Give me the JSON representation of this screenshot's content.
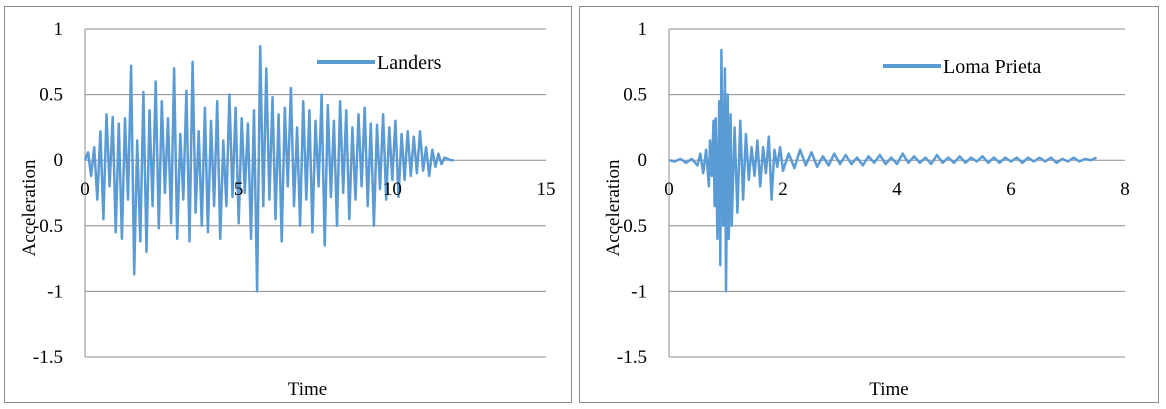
{
  "chart_data": [
    {
      "type": "line",
      "title": "",
      "xlabel": "Time",
      "ylabel": "Acceleration",
      "xlim": [
        0,
        15
      ],
      "ylim": [
        -1.5,
        1
      ],
      "xticks": [
        0,
        5,
        10,
        15
      ],
      "xtick_labels": [
        "0",
        "5",
        "10",
        "15"
      ],
      "yticks": [
        -1.5,
        -1,
        -0.5,
        0,
        0.5,
        1
      ],
      "ytick_labels": [
        "-1.5",
        "-1",
        "-0.5",
        "0",
        "0.5",
        "1"
      ],
      "grid": "horizontal",
      "legend": "top-right",
      "series": [
        {
          "name": "Landers",
          "color": "#5b9bd5",
          "x": [
            0,
            0.1,
            0.2,
            0.3,
            0.4,
            0.5,
            0.6,
            0.7,
            0.8,
            0.9,
            1.0,
            1.1,
            1.2,
            1.3,
            1.4,
            1.5,
            1.6,
            1.7,
            1.8,
            1.9,
            2.0,
            2.1,
            2.2,
            2.3,
            2.4,
            2.5,
            2.6,
            2.7,
            2.8,
            2.9,
            3.0,
            3.1,
            3.2,
            3.3,
            3.4,
            3.5,
            3.6,
            3.7,
            3.8,
            3.9,
            4.0,
            4.1,
            4.2,
            4.3,
            4.4,
            4.5,
            4.6,
            4.7,
            4.8,
            4.9,
            5.0,
            5.1,
            5.2,
            5.3,
            5.4,
            5.5,
            5.6,
            5.7,
            5.8,
            5.9,
            6.0,
            6.1,
            6.2,
            6.3,
            6.4,
            6.5,
            6.6,
            6.7,
            6.8,
            6.9,
            7.0,
            7.1,
            7.2,
            7.3,
            7.4,
            7.5,
            7.6,
            7.7,
            7.8,
            7.9,
            8.0,
            8.1,
            8.2,
            8.3,
            8.4,
            8.5,
            8.6,
            8.7,
            8.8,
            8.9,
            9.0,
            9.1,
            9.2,
            9.3,
            9.4,
            9.5,
            9.6,
            9.7,
            9.8,
            9.9,
            10.0,
            10.1,
            10.2,
            10.3,
            10.4,
            10.5,
            10.6,
            10.7,
            10.8,
            10.9,
            11.0,
            11.1,
            11.2,
            11.3,
            11.4,
            11.5,
            11.6,
            11.7,
            11.8,
            11.9,
            12.0
          ],
          "y": [
            0,
            0.06,
            -0.12,
            0.1,
            -0.3,
            0.22,
            -0.45,
            0.35,
            -0.2,
            0.33,
            -0.55,
            0.28,
            -0.6,
            0.32,
            -0.3,
            0.72,
            -0.87,
            0.15,
            -0.62,
            0.52,
            -0.7,
            0.38,
            -0.35,
            0.6,
            -0.52,
            0.45,
            -0.25,
            0.32,
            -0.48,
            0.7,
            -0.6,
            0.2,
            -0.3,
            0.53,
            -0.62,
            0.75,
            -0.4,
            0.22,
            -0.5,
            0.4,
            -0.55,
            0.3,
            -0.35,
            0.45,
            -0.6,
            0.15,
            -0.35,
            0.5,
            -0.28,
            0.4,
            -0.48,
            0.32,
            -0.25,
            0.28,
            -0.6,
            0.38,
            -1.0,
            0.87,
            -0.35,
            0.7,
            -0.3,
            0.48,
            -0.45,
            0.35,
            -0.62,
            0.4,
            -0.2,
            0.55,
            -0.35,
            0.25,
            -0.5,
            0.45,
            -0.3,
            0.38,
            -0.55,
            0.3,
            -0.2,
            0.5,
            -0.65,
            0.42,
            -0.28,
            0.3,
            -0.5,
            0.45,
            -0.25,
            0.38,
            -0.45,
            0.25,
            -0.3,
            0.35,
            -0.2,
            0.4,
            -0.35,
            0.28,
            -0.5,
            0.27,
            -0.22,
            0.35,
            -0.3,
            0.25,
            -0.15,
            0.3,
            -0.28,
            0.2,
            -0.15,
            0.22,
            -0.12,
            0.18,
            -0.1,
            0.22,
            -0.08,
            0.1,
            -0.12,
            0.08,
            -0.05,
            0.05,
            -0.03,
            0.02,
            0.01,
            0.0,
            0.0
          ]
        }
      ]
    },
    {
      "type": "line",
      "title": "",
      "xlabel": "Time",
      "ylabel": "Acceleration",
      "xlim": [
        0,
        8
      ],
      "ylim": [
        -1.5,
        1
      ],
      "xticks": [
        0,
        2,
        4,
        6,
        8
      ],
      "xtick_labels": [
        "0",
        "2",
        "4",
        "6",
        "8"
      ],
      "yticks": [
        -1.5,
        -1,
        -0.5,
        0,
        0.5,
        1
      ],
      "ytick_labels": [
        "-1.5",
        "-1",
        "-0.5",
        "0",
        "0.5",
        "1"
      ],
      "grid": "horizontal",
      "legend": "top-right",
      "series": [
        {
          "name": "Loma Prieta",
          "color": "#5b9bd5",
          "x": [
            0,
            0.1,
            0.2,
            0.3,
            0.4,
            0.5,
            0.55,
            0.6,
            0.65,
            0.7,
            0.72,
            0.75,
            0.78,
            0.8,
            0.82,
            0.85,
            0.88,
            0.9,
            0.92,
            0.95,
            0.98,
            1.0,
            1.03,
            1.05,
            1.08,
            1.1,
            1.15,
            1.2,
            1.25,
            1.3,
            1.35,
            1.4,
            1.45,
            1.5,
            1.55,
            1.6,
            1.65,
            1.7,
            1.75,
            1.8,
            1.85,
            1.9,
            1.95,
            2.0,
            2.1,
            2.2,
            2.3,
            2.4,
            2.5,
            2.6,
            2.7,
            2.8,
            2.9,
            3.0,
            3.1,
            3.2,
            3.3,
            3.4,
            3.5,
            3.6,
            3.7,
            3.8,
            3.9,
            4.0,
            4.1,
            4.2,
            4.3,
            4.4,
            4.5,
            4.6,
            4.7,
            4.8,
            4.9,
            5.0,
            5.1,
            5.2,
            5.3,
            5.4,
            5.5,
            5.6,
            5.7,
            5.8,
            5.9,
            6.0,
            6.1,
            6.2,
            6.3,
            6.4,
            6.5,
            6.6,
            6.7,
            6.8,
            6.9,
            7.0,
            7.1,
            7.2,
            7.3,
            7.4,
            7.5
          ],
          "y": [
            0,
            -0.01,
            0.01,
            -0.02,
            0.01,
            -0.04,
            0.05,
            -0.1,
            0.08,
            -0.2,
            0.15,
            -0.12,
            0.3,
            -0.35,
            0.32,
            -0.6,
            0.45,
            -0.8,
            0.84,
            -0.5,
            0.7,
            -1.0,
            0.5,
            -0.6,
            0.35,
            -0.5,
            0.25,
            -0.4,
            0.3,
            -0.3,
            0.2,
            -0.15,
            0.1,
            -0.12,
            0.15,
            -0.2,
            0.1,
            -0.1,
            0.18,
            -0.3,
            0.08,
            -0.05,
            0.1,
            -0.08,
            0.05,
            -0.06,
            0.08,
            -0.04,
            0.06,
            -0.05,
            0.03,
            -0.04,
            0.05,
            -0.03,
            0.04,
            -0.03,
            0.02,
            -0.04,
            0.03,
            -0.02,
            0.04,
            -0.03,
            0.02,
            -0.03,
            0.05,
            -0.02,
            0.03,
            -0.02,
            0.02,
            -0.03,
            0.04,
            -0.02,
            0.02,
            -0.02,
            0.03,
            -0.02,
            0.02,
            -0.01,
            0.03,
            -0.02,
            0.02,
            -0.02,
            0.02,
            -0.01,
            0.02,
            -0.02,
            0.02,
            -0.01,
            0.02,
            -0.01,
            0.02,
            -0.02,
            0.01,
            -0.01,
            0.02,
            -0.01,
            0.01,
            0.0,
            0.02
          ]
        }
      ]
    }
  ]
}
